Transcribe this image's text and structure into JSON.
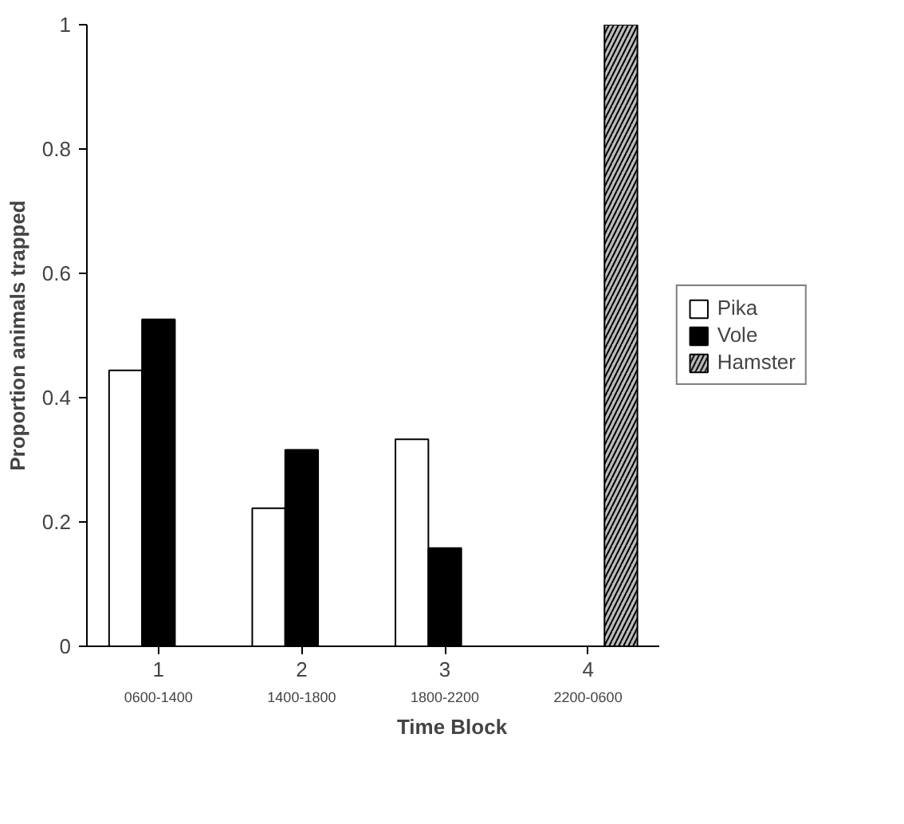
{
  "chart_data": {
    "type": "bar",
    "xlabel": "Time Block",
    "ylabel": "Proportion animals trapped",
    "categories": [
      "1",
      "2",
      "3",
      "4"
    ],
    "annotations": [
      "0600-1400",
      "1400-1800",
      "1800-2200",
      "2200-0600"
    ],
    "series": [
      {
        "name": "Pika",
        "color": "#ffffff",
        "values": [
          0.444,
          0.222,
          0.333,
          null
        ]
      },
      {
        "name": "Vole",
        "color": "#000000",
        "values": [
          0.526,
          0.316,
          0.158,
          null
        ]
      },
      {
        "name": "Hamster",
        "color": "#bbbbbb",
        "values": [
          null,
          null,
          null,
          1.0
        ]
      }
    ],
    "ylim": [
      0,
      1
    ],
    "yticks": [
      0,
      0.2,
      0.4,
      0.6,
      0.8,
      1
    ],
    "legend": "right"
  }
}
